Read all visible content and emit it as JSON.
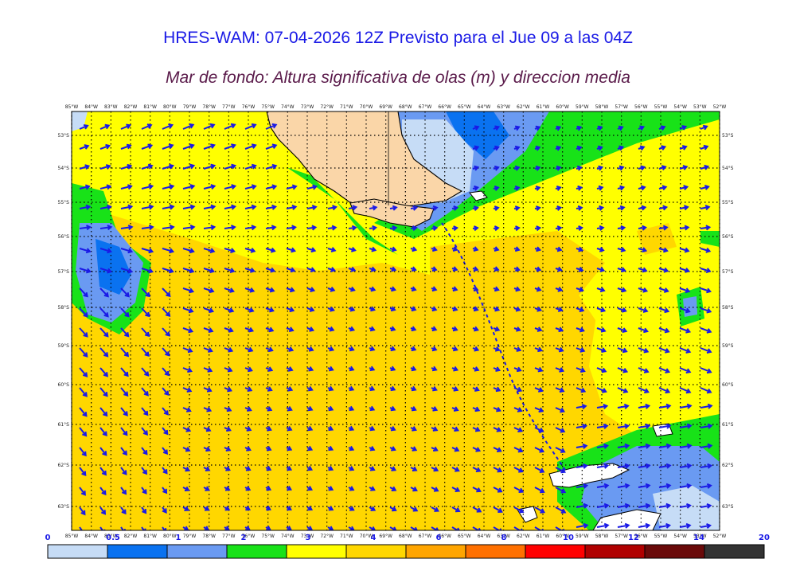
{
  "title": "HRES-WAM: 07-04-2026 12Z Previsto para el Jue 09 a las 04Z",
  "subtitle": "Mar de fondo: Altura significativa de olas (m) y direccion media",
  "lon_labels": [
    "85°W",
    "84°W",
    "83°W",
    "82°W",
    "81°W",
    "80°W",
    "79°W",
    "78°W",
    "77°W",
    "76°W",
    "75°W",
    "74°W",
    "73°W",
    "72°W",
    "71°W",
    "70°W",
    "69°W",
    "68°W",
    "67°W",
    "66°W",
    "65°W",
    "64°W",
    "63°W",
    "62°W",
    "61°W",
    "60°W",
    "59°W",
    "58°W",
    "57°W",
    "56°W",
    "55°W",
    "54°W",
    "53°W",
    "52°W"
  ],
  "lat_labels": [
    "53°S",
    "54°S",
    "55°S",
    "56°S",
    "57°S",
    "58°S",
    "59°S",
    "60°S",
    "61°S",
    "62°S",
    "63°S"
  ],
  "colorbar": {
    "ticks": [
      "0",
      "0.5",
      "1",
      "2",
      "3",
      "4",
      "6",
      "8",
      "10",
      "12",
      "14",
      "20"
    ],
    "colors": [
      "#c6dcf6",
      "#0a72f0",
      "#6a9af2",
      "#18e218",
      "#ffff00",
      "#ffd700",
      "#ffa500",
      "#ff7000",
      "#ff0000",
      "#b00000",
      "#6a0a0a",
      "#333333"
    ]
  },
  "legend": {
    "fill_colors": {
      "land": "#fad6a8",
      "bin_0_0_5": "#c6dcf6",
      "bin_0_5_1": "#0a72f0",
      "bin_1_2": "#6a9af2",
      "bin_2_3": "#18e218",
      "bin_3_4": "#ffff00",
      "bin_4_6": "#ffd700"
    },
    "arrow_color": "#1a1ae6"
  }
}
